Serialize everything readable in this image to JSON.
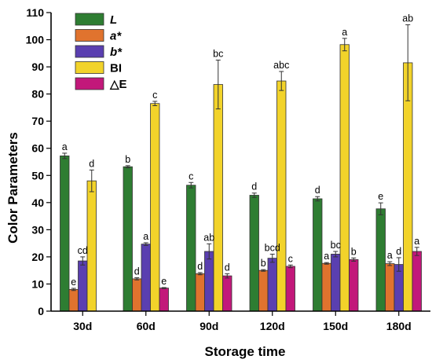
{
  "chart_data": {
    "type": "bar",
    "xlabel": "Storage time",
    "ylabel": "Color Parameters",
    "ylim": [
      0,
      110
    ],
    "yticks": [
      0,
      10,
      20,
      30,
      40,
      50,
      60,
      70,
      80,
      90,
      100,
      110
    ],
    "categories": [
      "30d",
      "60d",
      "90d",
      "120d",
      "150d",
      "180d"
    ],
    "legend_position": "top-left",
    "grid": false,
    "series": [
      {
        "name": "L",
        "italic": true,
        "color": "#2e7d32",
        "values": [
          57.2,
          53.2,
          46.4,
          42.7,
          41.4,
          37.7
        ],
        "errors": [
          1.0,
          0.4,
          1.0,
          0.8,
          0.8,
          2.2
        ],
        "letters": [
          "a",
          "b",
          "c",
          "d",
          "d",
          "e"
        ]
      },
      {
        "name": "a*",
        "italic": true,
        "color": "#e0732e",
        "values": [
          8.0,
          11.9,
          13.8,
          15.0,
          17.6,
          17.5
        ],
        "errors": [
          0.4,
          0.4,
          0.4,
          0.3,
          0.3,
          0.7
        ],
        "letters": [
          "e",
          "d",
          "d",
          "b",
          "a",
          "a"
        ]
      },
      {
        "name": "b*",
        "italic": true,
        "color": "#5a3fb0",
        "values": [
          18.5,
          24.7,
          22.0,
          19.5,
          21.0,
          17.2
        ],
        "errors": [
          1.5,
          0.5,
          2.8,
          1.5,
          1.0,
          2.5
        ],
        "letters": [
          "cd",
          "a",
          "ab",
          "bcd",
          "bc",
          "d"
        ]
      },
      {
        "name": "BI",
        "italic": false,
        "color": "#f2d32a",
        "values": [
          48.0,
          76.5,
          83.5,
          84.8,
          98.2,
          91.5
        ],
        "errors": [
          4.0,
          0.8,
          9.0,
          3.5,
          2.3,
          14.0
        ],
        "letters": [
          "d",
          "c",
          "bc",
          "abc",
          "a",
          "ab"
        ]
      },
      {
        "name": "△E",
        "italic": false,
        "color": "#c2187a",
        "values": [
          null,
          8.5,
          13.0,
          16.5,
          19.0,
          22.0
        ],
        "errors": [
          0,
          0.2,
          0.8,
          0.5,
          0.6,
          1.5
        ],
        "letters": [
          "",
          "e",
          "d",
          "c",
          "b",
          "a"
        ]
      }
    ]
  }
}
